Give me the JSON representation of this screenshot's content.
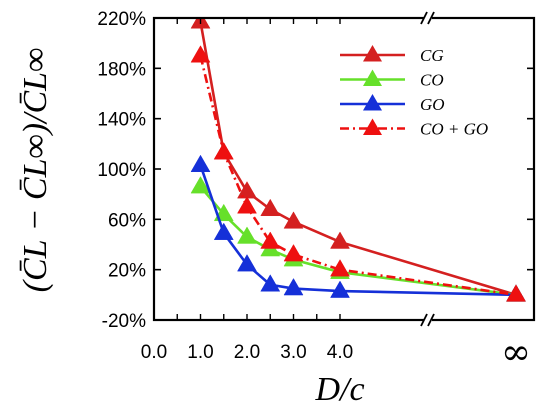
{
  "chart_data": {
    "type": "line",
    "xlabel": "D/c",
    "ylabel": "(C̄L − C̄L∞)/C̄L∞",
    "x_ticks": [
      "0.0",
      "1.0",
      "2.0",
      "3.0",
      "4.0",
      "∞"
    ],
    "y_ticks": [
      "-20%",
      "20%",
      "60%",
      "100%",
      "140%",
      "180%",
      "220%"
    ],
    "xlim": [
      0.0,
      4.0
    ],
    "ylim": [
      -20,
      220
    ],
    "x_break": true,
    "x_values": [
      1.0,
      1.5,
      2.0,
      2.5,
      3.0,
      4.0,
      "∞"
    ],
    "legend_position": "top-right",
    "series": [
      {
        "name": "CG",
        "color": "#d42020",
        "style": "solid",
        "marker": "triangle",
        "values": [
          217,
          113,
          82,
          68,
          58,
          42,
          0
        ]
      },
      {
        "name": "CO",
        "color": "#66e02a",
        "style": "solid",
        "marker": "triangle",
        "values": [
          86,
          64,
          46,
          36,
          28,
          18,
          0
        ]
      },
      {
        "name": "GO",
        "color": "#1530d8",
        "style": "solid",
        "marker": "triangle",
        "values": [
          103,
          49,
          24,
          8,
          5,
          3,
          0
        ]
      },
      {
        "name": "CO + GO",
        "color": "#ee1010",
        "style": "dashdot",
        "marker": "triangle",
        "values": [
          190,
          113,
          70,
          42,
          32,
          20,
          0
        ]
      }
    ]
  }
}
